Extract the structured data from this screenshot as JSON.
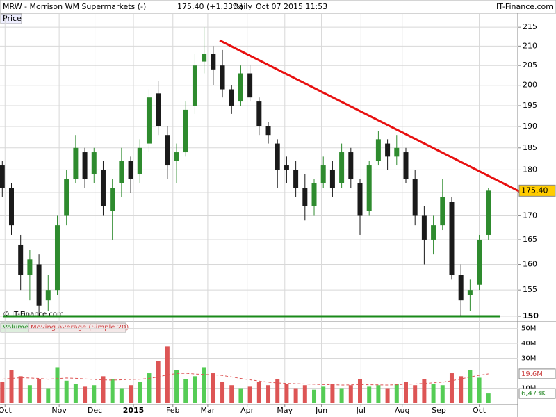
{
  "chart_data": {
    "type": "candlestick",
    "header": {
      "symbol": "MRW - Morrison WM Supermarkets (-)",
      "quote": "175.40 (+1.33%)",
      "period": "Daily",
      "timestamp": "Oct 07 2015 11:53",
      "source": "IT-Finance.com"
    },
    "price_label": "Price",
    "copyright": "© IT-Finance.com",
    "volume_label": "Volume",
    "ma_label": "Moving average (Simple 20)",
    "log_scale": true,
    "grid": true,
    "up_color": "#2e8b2e",
    "down_color": "#1a1a1a",
    "volume_up_color": "#55cc55",
    "volume_down_color": "#dd5555",
    "ma_color": "#dd5555",
    "trend_color": "#e81010",
    "support_color": "#1a8a1a",
    "xlim": [
      -0.25,
      56.2
    ],
    "xticks": [
      {
        "value": 0.3,
        "label": "Oct"
      },
      {
        "value": 6.2,
        "label": "Nov"
      },
      {
        "value": 10.1,
        "label": "Dec"
      },
      {
        "value": 14.3,
        "label": "2015"
      },
      {
        "value": 18.6,
        "label": "Feb"
      },
      {
        "value": 22.4,
        "label": "Mar"
      },
      {
        "value": 26.7,
        "label": "Apr"
      },
      {
        "value": 30.8,
        "label": "May"
      },
      {
        "value": 34.8,
        "label": "Jun"
      },
      {
        "value": 39.1,
        "label": "Jul"
      },
      {
        "value": 43.6,
        "label": "Aug"
      },
      {
        "value": 47.6,
        "label": "Sep"
      },
      {
        "value": 52.0,
        "label": "Oct"
      }
    ],
    "ylim": [
      149.1,
      218.6
    ],
    "yticks": [
      150,
      155,
      160,
      165,
      170,
      175,
      180,
      185,
      190,
      195,
      200,
      205,
      210,
      215
    ],
    "open": [
      181,
      176,
      164,
      158,
      160,
      153,
      155,
      170,
      178,
      184,
      179,
      180,
      171,
      177,
      182,
      179,
      186,
      198,
      188,
      182,
      184,
      195,
      206,
      208,
      205,
      199,
      196,
      203,
      196,
      190,
      186,
      181,
      180,
      176,
      172,
      177,
      180,
      177,
      184,
      177,
      171,
      182,
      186,
      183,
      184,
      178,
      170,
      165,
      168,
      173,
      158,
      154,
      156,
      166
    ],
    "high": [
      182,
      177,
      166,
      163,
      162,
      158,
      170,
      180,
      188,
      185,
      185,
      182,
      178,
      185,
      183,
      187,
      199,
      201,
      190,
      186,
      196,
      208,
      215,
      210,
      209,
      200,
      205,
      205,
      197,
      191,
      187,
      183,
      182,
      179,
      178,
      183,
      182,
      186,
      185,
      178,
      182,
      189,
      187,
      188,
      185,
      180,
      172,
      170,
      178,
      174,
      160,
      157,
      166,
      176
    ],
    "low": [
      174,
      166,
      155,
      153,
      150,
      151,
      154,
      168,
      177,
      176,
      177,
      170,
      165,
      174,
      175,
      177,
      184,
      188,
      178,
      177,
      183,
      193,
      203,
      200,
      197,
      193,
      195,
      196,
      188,
      186,
      176,
      177,
      174,
      169,
      170,
      176,
      174,
      176,
      176,
      166,
      170,
      181,
      180,
      181,
      177,
      168,
      160,
      162,
      167,
      157,
      150,
      151,
      155,
      165
    ],
    "close": [
      176,
      168,
      158,
      161,
      152,
      155,
      168,
      178,
      185,
      178,
      184,
      172,
      176,
      182,
      178,
      185,
      197,
      190,
      181,
      184,
      194,
      205,
      208,
      204,
      199,
      195,
      203,
      197,
      190,
      188,
      180,
      180,
      176,
      172,
      177,
      181,
      176,
      184,
      178,
      170,
      181,
      187,
      183,
      185,
      178,
      170,
      165,
      168,
      174,
      158,
      153,
      155,
      165,
      175.4
    ],
    "close_labels": {
      "53": "175.40"
    },
    "trendline": {
      "x": [
        23.7,
        57.1
      ],
      "y": [
        211.5,
        174.5
      ]
    },
    "support": 150,
    "volume_ylim": [
      0,
      54
    ],
    "volume_yticks": [
      {
        "value": 10,
        "label": "10M"
      },
      {
        "value": 30,
        "label": "30M"
      },
      {
        "value": 40,
        "label": "40M"
      },
      {
        "value": 50,
        "label": "50M"
      }
    ],
    "volume": [
      14,
      22,
      18,
      12,
      16,
      10,
      24,
      15,
      13,
      11,
      12,
      18,
      16,
      10,
      12,
      14,
      20,
      28,
      38,
      22,
      16,
      18,
      24,
      20,
      14,
      12,
      10,
      11,
      14,
      12,
      16,
      13,
      10,
      12,
      9,
      11,
      13,
      10,
      12,
      16,
      11,
      12,
      10,
      13,
      14,
      12,
      16,
      13,
      12,
      20,
      18,
      22,
      17,
      6.473
    ],
    "volume_labels": {
      "53": "6,473K"
    },
    "volume_ma": [
      16,
      16.5,
      17,
      16.8,
      16.5,
      16,
      16.4,
      16.8,
      16.6,
      16.2,
      15.8,
      15.5,
      15.4,
      15.6,
      15.8,
      16,
      16.5,
      17.5,
      19,
      19.8,
      20,
      19.5,
      19.2,
      19,
      18.5,
      17.5,
      16.5,
      15.6,
      14.8,
      14,
      13.5,
      13.2,
      13,
      12.8,
      12.6,
      12.4,
      12.3,
      12.1,
      12.2,
      12.4,
      12.3,
      12.2,
      12.1,
      12.3,
      12.6,
      12.8,
      13.2,
      13.6,
      14,
      15,
      16.2,
      17.5,
      18.6,
      19.6
    ],
    "volume_ma_labels": {
      "53": "19.6M"
    }
  }
}
